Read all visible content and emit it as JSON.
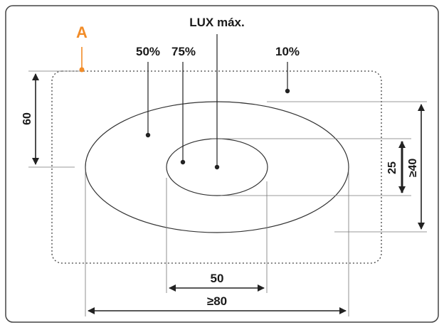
{
  "labels": {
    "point_a": "A",
    "lux_max": "LUX máx.",
    "pct_50": "50%",
    "pct_75": "75%",
    "pct_10": "10%",
    "dim_60": "60",
    "dim_25": "25",
    "dim_40": "≥40",
    "dim_50": "50",
    "dim_80": "≥80"
  },
  "colors": {
    "accent": "#f28c28",
    "line": "#222222",
    "frame": "#444444"
  }
}
